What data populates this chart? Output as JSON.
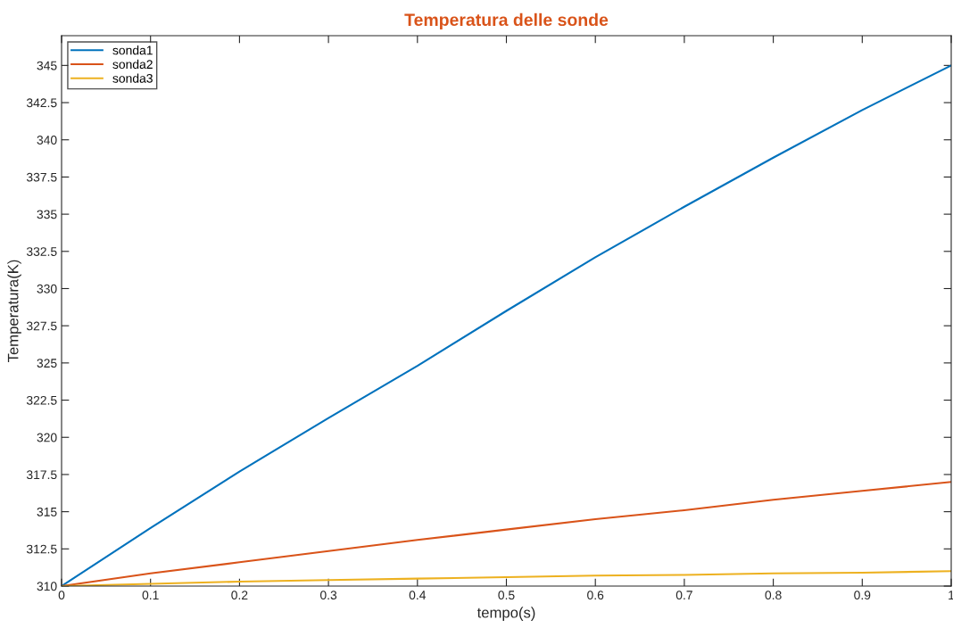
{
  "chart_data": {
    "type": "line",
    "title": "Temperatura delle sonde",
    "xlabel": "tempo(s)",
    "ylabel": "Temperatura(K)",
    "x": [
      0,
      0.1,
      0.2,
      0.3,
      0.4,
      0.5,
      0.6,
      0.7,
      0.8,
      0.9,
      1
    ],
    "series": [
      {
        "name": "sonda1",
        "color": "#0072bd",
        "values": [
          310,
          313.9,
          317.7,
          321.3,
          324.8,
          328.5,
          332.1,
          335.5,
          338.8,
          342,
          345
        ]
      },
      {
        "name": "sonda2",
        "color": "#d95319",
        "values": [
          310,
          310.85,
          311.6,
          312.35,
          313.1,
          313.8,
          314.5,
          315.1,
          315.8,
          316.4,
          317
        ]
      },
      {
        "name": "sonda3",
        "color": "#edb120",
        "values": [
          310,
          310.15,
          310.3,
          310.4,
          310.5,
          310.6,
          310.7,
          310.75,
          310.85,
          310.9,
          311
        ]
      }
    ],
    "xlim": [
      0,
      1
    ],
    "xticks": [
      0,
      0.1,
      0.2,
      0.3,
      0.4,
      0.5,
      0.6,
      0.7,
      0.8,
      0.9,
      1
    ],
    "ylim": [
      310,
      347
    ],
    "yticks": [
      310,
      312.5,
      315,
      317.5,
      320,
      322.5,
      325,
      327.5,
      330,
      332.5,
      335,
      337.5,
      340,
      342.5,
      345
    ],
    "grid": false,
    "legend": "top left",
    "marker": "none",
    "line_style": "solid"
  }
}
